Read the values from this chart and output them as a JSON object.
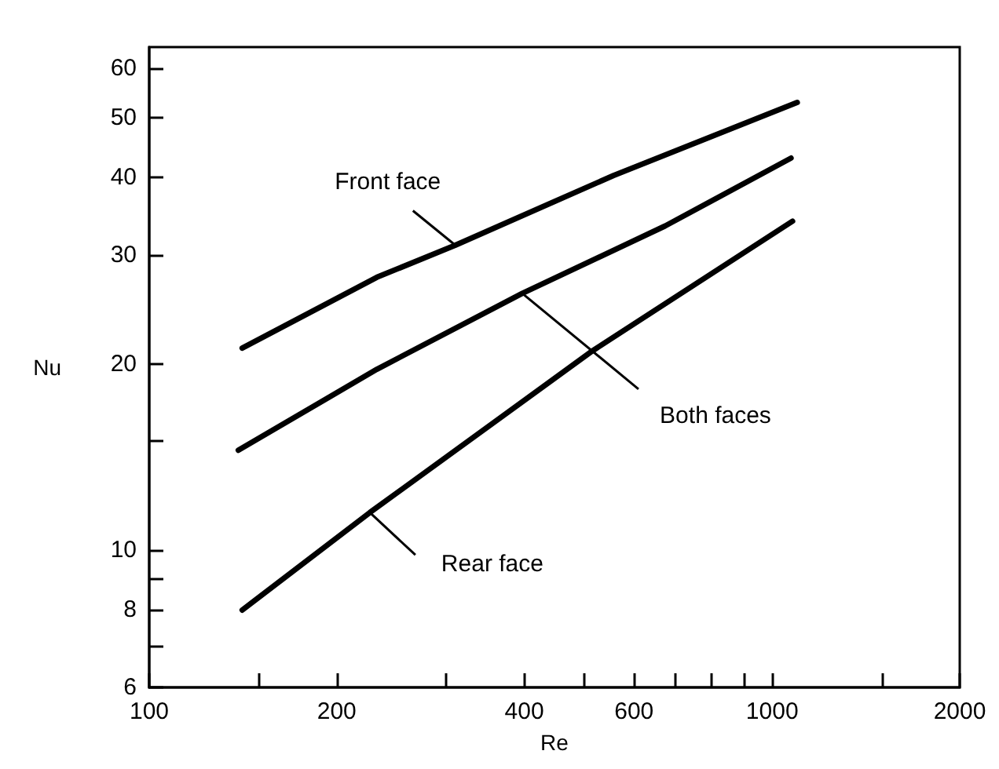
{
  "chart_data": {
    "type": "line",
    "xlabel": "Re",
    "ylabel": "Nu",
    "log": "xy",
    "grid": false,
    "legend": false,
    "marker": "none",
    "line_style": "solid",
    "xlim": [
      100,
      2000
    ],
    "ylim": [
      6,
      65
    ],
    "xticks": [
      100,
      {
        "value": 150,
        "label": null
      },
      200,
      {
        "value": 300,
        "label": null
      },
      400,
      {
        "value": 500,
        "label": null
      },
      600,
      {
        "value": 700,
        "label": null
      },
      {
        "value": 800,
        "label": null
      },
      {
        "value": 900,
        "label": null
      },
      1000,
      {
        "value": 1500,
        "label": null
      },
      2000
    ],
    "yticks": [
      6,
      {
        "value": 7,
        "label": null
      },
      8,
      {
        "value": 9,
        "label": null
      },
      10,
      {
        "value": 15,
        "label": null
      },
      20,
      30,
      40,
      50,
      60
    ],
    "series": [
      {
        "color": "#000000",
        "x": [
          141,
          232,
          310,
          556,
          1097
        ],
        "values": [
          21.2,
          27.6,
          31.1,
          40.3,
          52.9
        ]
      },
      {
        "color": "#000000",
        "x": [
          139,
          232,
          397,
          673,
          1072
        ],
        "values": [
          14.5,
          19.6,
          26.0,
          33.4,
          43.0
        ]
      },
      {
        "color": "#000000",
        "x": [
          141,
          226,
          515,
          1078
        ],
        "values": [
          8.0,
          11.5,
          21.0,
          34.0
        ]
      }
    ],
    "annotations": [
      {
        "text": "Front face",
        "x": 310,
        "y": 31.1
      },
      {
        "text": "Both faces",
        "x": 397,
        "y": 26.0
      },
      {
        "text": "Rear face",
        "x": 226,
        "y": 11.5
      }
    ]
  }
}
